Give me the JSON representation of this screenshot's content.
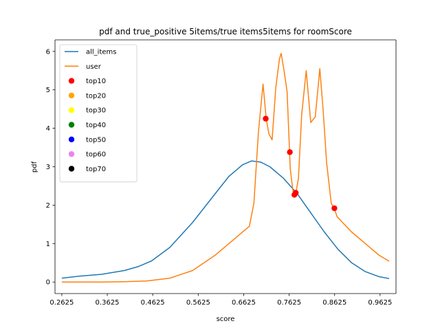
{
  "chart_data": {
    "type": "line",
    "title": "pdf and true_positive 5items/true items5items for roomScore",
    "xlabel": "score",
    "ylabel": "pdf",
    "xlim": [
      0.2475,
      0.9975
    ],
    "ylim": [
      -0.3,
      6.3
    ],
    "xticks": [
      0.2625,
      0.3625,
      0.4625,
      0.5625,
      0.6625,
      0.7625,
      0.8625,
      0.9625
    ],
    "xtick_labels": [
      "0.2625",
      "0.3625",
      "0.4625",
      "0.5625",
      "0.6625",
      "0.7625",
      "0.8625",
      "0.9625"
    ],
    "yticks": [
      0,
      1,
      2,
      3,
      4,
      5,
      6
    ],
    "ytick_labels": [
      "0",
      "1",
      "2",
      "3",
      "4",
      "5",
      "6"
    ],
    "grid": false,
    "legend_position": "top-left",
    "series": [
      {
        "name": "all_items",
        "color": "#1f77b4",
        "x": [
          0.2625,
          0.3,
          0.35,
          0.4,
          0.43,
          0.46,
          0.5,
          0.55,
          0.6,
          0.63,
          0.66,
          0.68,
          0.7,
          0.72,
          0.75,
          0.78,
          0.81,
          0.84,
          0.87,
          0.9,
          0.93,
          0.96,
          0.9825
        ],
        "y": [
          0.1,
          0.15,
          0.2,
          0.3,
          0.4,
          0.55,
          0.9,
          1.55,
          2.3,
          2.75,
          3.05,
          3.15,
          3.12,
          3.0,
          2.7,
          2.3,
          1.8,
          1.3,
          0.85,
          0.5,
          0.27,
          0.14,
          0.09
        ]
      },
      {
        "name": "user",
        "color": "#ff7f0e",
        "x": [
          0.2625,
          0.35,
          0.4,
          0.45,
          0.5,
          0.55,
          0.6,
          0.64,
          0.675,
          0.685,
          0.695,
          0.705,
          0.712,
          0.718,
          0.725,
          0.733,
          0.741,
          0.745,
          0.752,
          0.758,
          0.765,
          0.771,
          0.777,
          0.783,
          0.79,
          0.8,
          0.81,
          0.82,
          0.83,
          0.837,
          0.845,
          0.855,
          0.862,
          0.868,
          0.88,
          0.9,
          0.93,
          0.96,
          0.9825
        ],
        "y": [
          0.0,
          0.0,
          0.01,
          0.03,
          0.1,
          0.3,
          0.7,
          1.1,
          1.45,
          2.05,
          3.9,
          5.15,
          4.25,
          3.85,
          3.7,
          5.05,
          5.8,
          5.95,
          5.45,
          4.95,
          2.95,
          2.35,
          2.3,
          2.7,
          4.35,
          5.5,
          4.15,
          4.3,
          5.55,
          4.5,
          3.1,
          2.05,
          1.9,
          1.7,
          1.55,
          1.3,
          1.0,
          0.7,
          0.54
        ]
      }
    ],
    "scatter": [
      {
        "name": "top10",
        "color": "#ff0000",
        "x": [
          0.711,
          0.764,
          0.774,
          0.777,
          0.862
        ],
        "y": [
          4.25,
          3.38,
          2.27,
          2.32,
          1.92
        ]
      },
      {
        "name": "top20",
        "color": "#ffa500",
        "x": [],
        "y": []
      },
      {
        "name": "top30",
        "color": "#ffff00",
        "x": [],
        "y": []
      },
      {
        "name": "top40",
        "color": "#008000",
        "x": [],
        "y": []
      },
      {
        "name": "top50",
        "color": "#0000ff",
        "x": [],
        "y": []
      },
      {
        "name": "top60",
        "color": "#ee82ee",
        "x": [],
        "y": []
      },
      {
        "name": "top70",
        "color": "#000000",
        "x": [],
        "y": []
      }
    ]
  }
}
